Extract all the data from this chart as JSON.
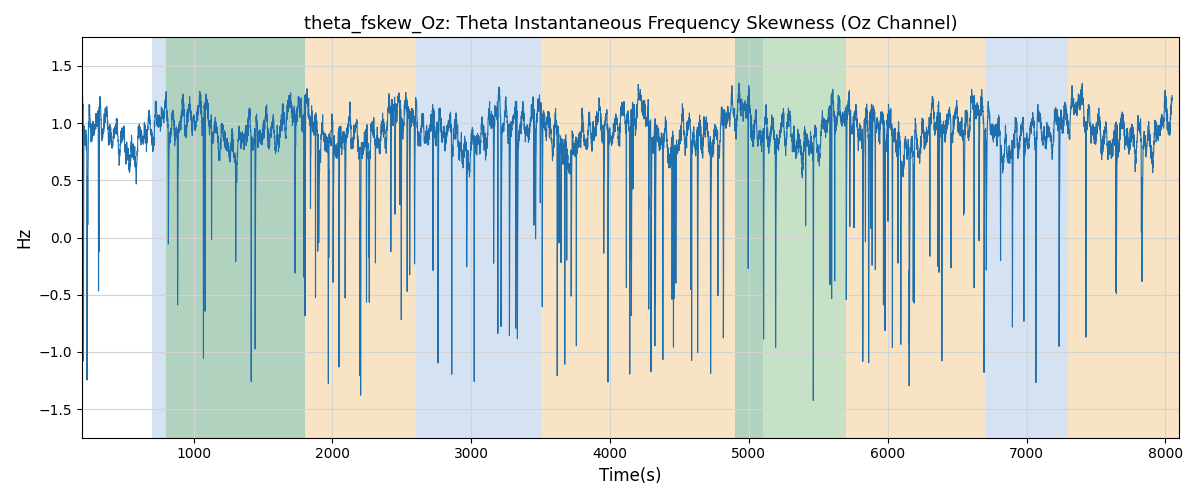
{
  "title": "theta_fskew_Oz: Theta Instantaneous Frequency Skewness (Oz Channel)",
  "xlabel": "Time(s)",
  "ylabel": "Hz",
  "xlim": [
    195,
    8100
  ],
  "ylim": [
    -1.75,
    1.75
  ],
  "xticks": [
    1000,
    2000,
    3000,
    4000,
    5000,
    6000,
    7000,
    8000
  ],
  "yticks": [
    -1.5,
    -1.0,
    -0.5,
    0.0,
    0.5,
    1.0,
    1.5
  ],
  "line_color": "#1f6fad",
  "line_width": 0.8,
  "bg_color": "#ffffff",
  "regions": [
    {
      "xmin": 700,
      "xmax": 1800,
      "color": "#adc6e5",
      "alpha": 0.5
    },
    {
      "xmin": 800,
      "xmax": 1800,
      "color": "#90c490",
      "alpha": 0.5
    },
    {
      "xmin": 1800,
      "xmax": 2600,
      "color": "#f5c98c",
      "alpha": 0.5
    },
    {
      "xmin": 2600,
      "xmax": 3500,
      "color": "#adc6e5",
      "alpha": 0.5
    },
    {
      "xmin": 3500,
      "xmax": 4900,
      "color": "#f5c98c",
      "alpha": 0.5
    },
    {
      "xmin": 4900,
      "xmax": 5100,
      "color": "#adc6e5",
      "alpha": 0.5
    },
    {
      "xmin": 4900,
      "xmax": 5700,
      "color": "#90c490",
      "alpha": 0.5
    },
    {
      "xmin": 5700,
      "xmax": 6700,
      "color": "#f5c98c",
      "alpha": 0.5
    },
    {
      "xmin": 6700,
      "xmax": 7300,
      "color": "#adc6e5",
      "alpha": 0.5
    },
    {
      "xmin": 7300,
      "xmax": 8100,
      "color": "#f5c98c",
      "alpha": 0.5
    }
  ],
  "t_start": 200,
  "t_end": 8050,
  "n_points": 7800,
  "seed": 7
}
